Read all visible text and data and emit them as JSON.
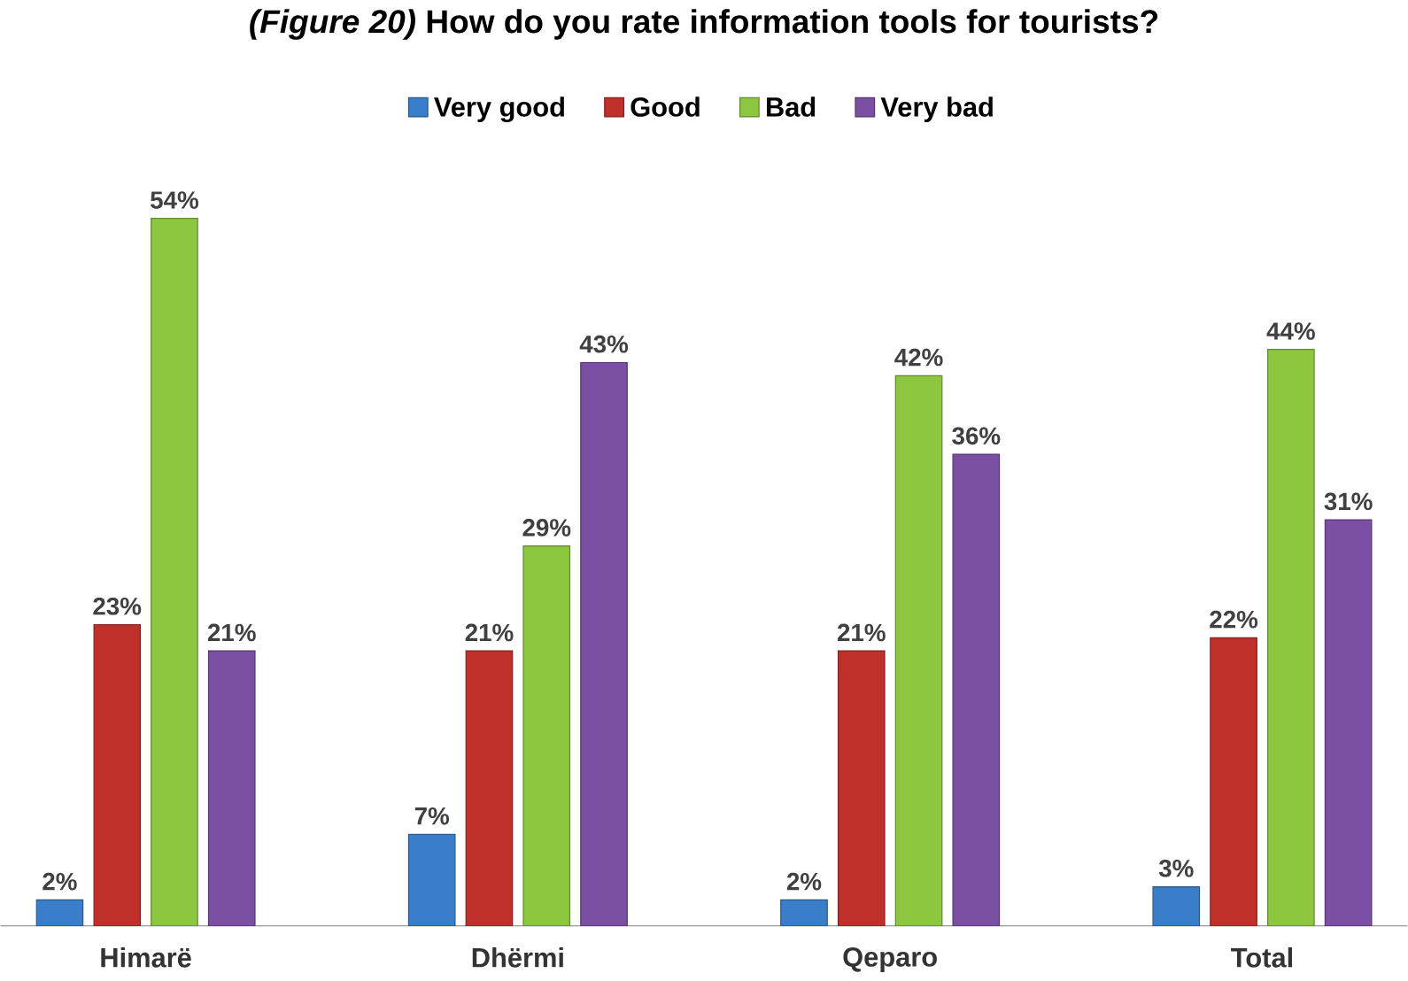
{
  "chart_data": {
    "type": "bar",
    "title": "*(Figure 20)* How do you rate information tools for tourists?",
    "categories": [
      "Himarë",
      "Dhërmi",
      "Qeparo",
      "Total"
    ],
    "legend": "top",
    "tick_labels": "x",
    "series": [
      {
        "name": "Very good",
        "color": "#3a7dc9",
        "values": [
          2,
          7,
          2,
          3
        ],
        "value_labels": [
          "2%",
          "7%",
          "2%",
          "3%"
        ]
      },
      {
        "name": "Good",
        "color": "#c0302a",
        "values": [
          23,
          21,
          21,
          22
        ],
        "value_labels": [
          "23%",
          "21%",
          "21%",
          "22%"
        ]
      },
      {
        "name": "Bad",
        "color": "#8dc63f",
        "values": [
          54,
          29,
          42,
          44
        ],
        "value_labels": [
          "54%",
          "29%",
          "42%",
          "44%"
        ]
      },
      {
        "name": "Very bad",
        "color": "#7b4fa3",
        "values": [
          21,
          43,
          36,
          31
        ],
        "value_labels": [
          "21%",
          "43%",
          "36%",
          "31%"
        ]
      }
    ]
  }
}
